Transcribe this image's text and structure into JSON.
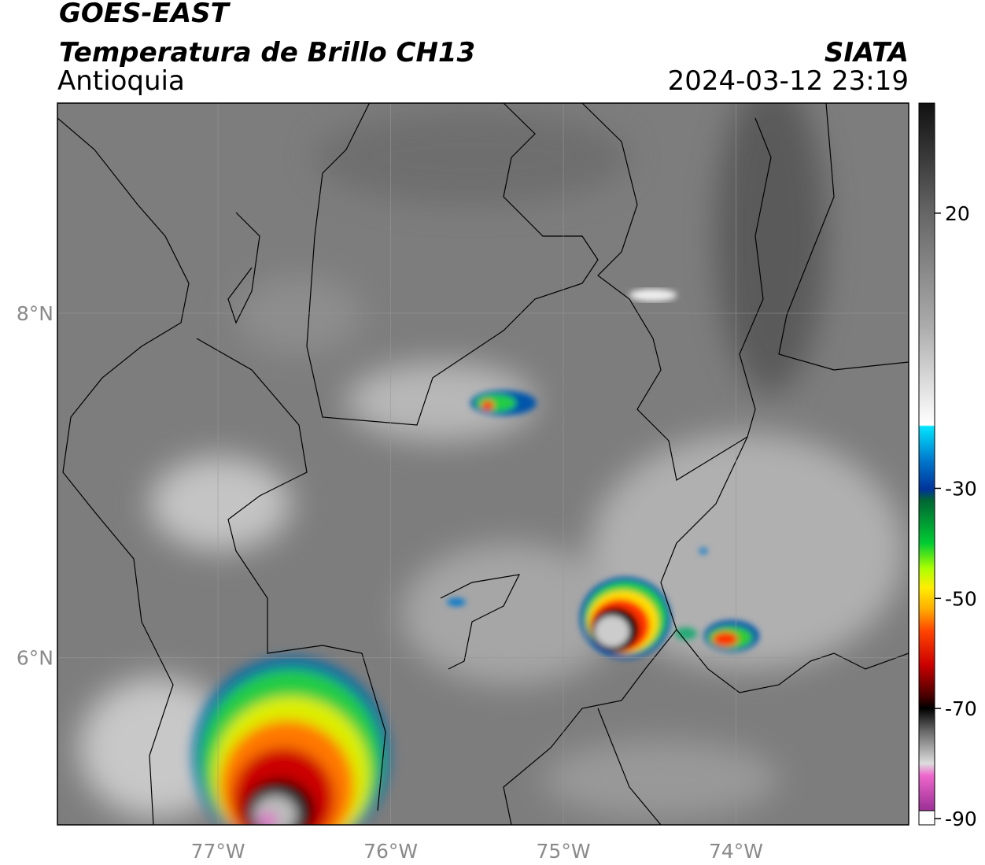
{
  "header": {
    "title": "GOES-EAST",
    "subtitle": "Temperatura de Brillo CH13",
    "region": "Antioquia",
    "source": "SIATA",
    "timestamp": "2024-03-12 23:19"
  },
  "map": {
    "xlim": [
      -77.93,
      -73.0
    ],
    "ylim": [
      5.03,
      9.22
    ],
    "xticks": [
      {
        "value": -77,
        "label": "77°W"
      },
      {
        "value": -76,
        "label": "76°W"
      },
      {
        "value": -75,
        "label": "75°W"
      },
      {
        "value": -74,
        "label": "74°W"
      }
    ],
    "yticks": [
      {
        "value": 8,
        "label": "8°N"
      },
      {
        "value": 6,
        "label": "6°N"
      }
    ],
    "grid": true
  },
  "colorbar": {
    "lim": [
      -90,
      40
    ],
    "ticks": [
      20,
      -30,
      -50,
      -70,
      -90
    ]
  }
}
